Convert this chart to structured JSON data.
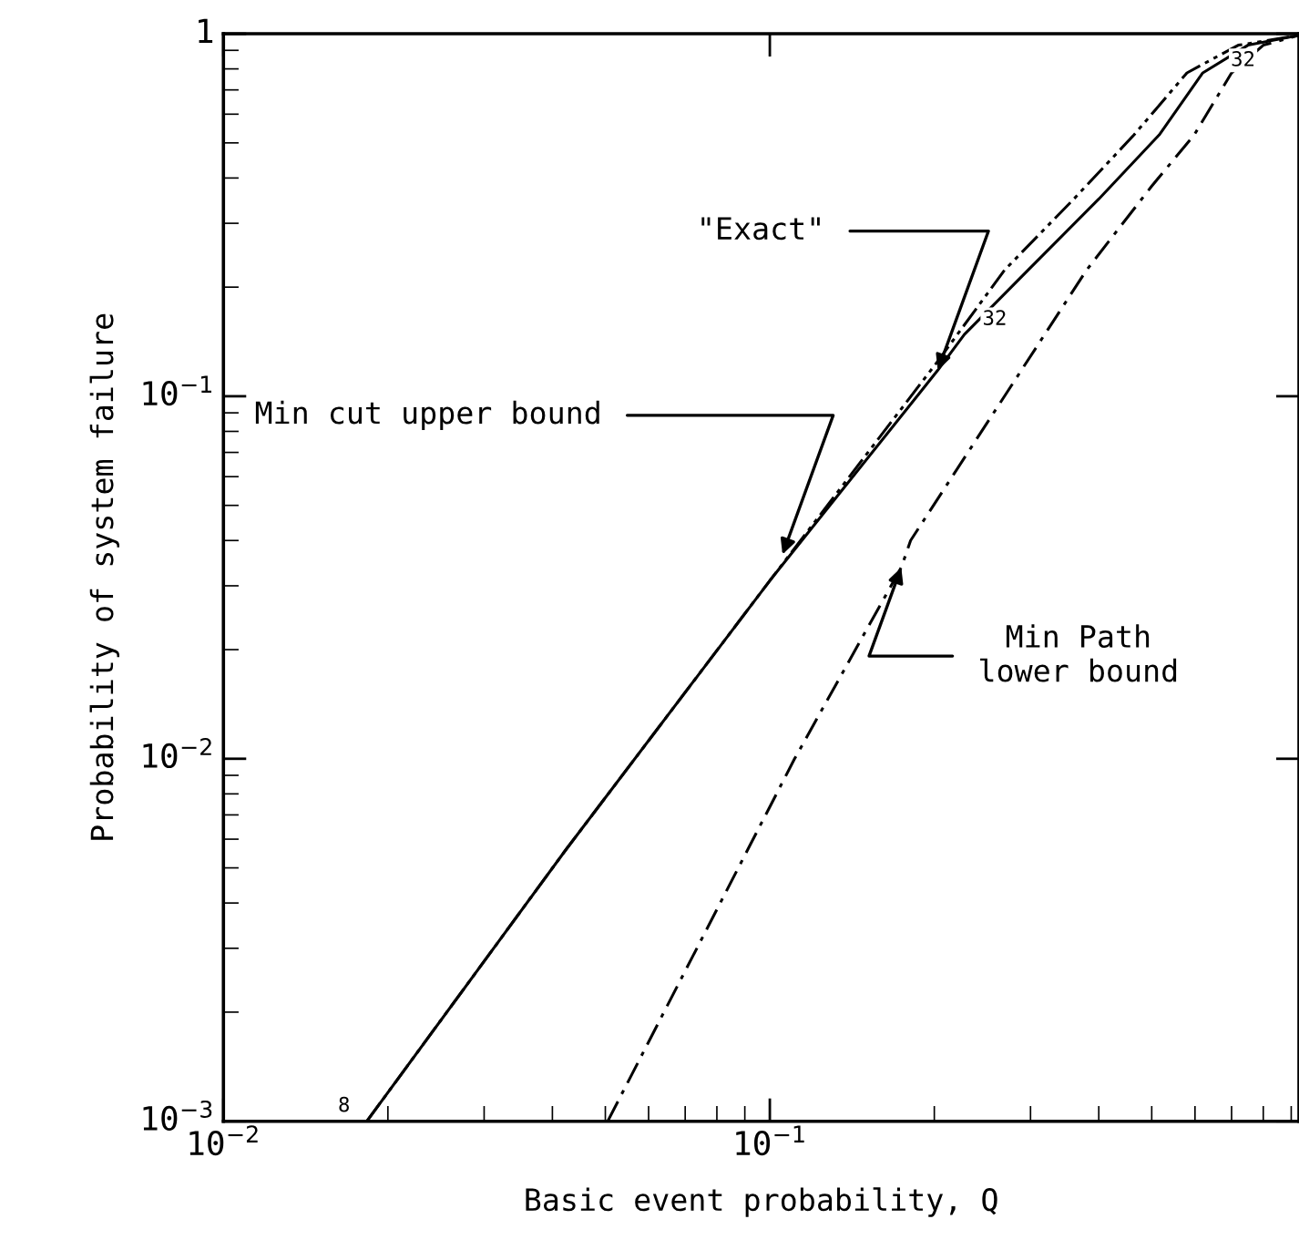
{
  "chart_data": {
    "type": "line",
    "xlabel": "Basic event probability, Q",
    "ylabel": "Probability of system failure",
    "log": "xy",
    "grid": false,
    "marker": "none",
    "xlim": [
      0.01,
      0.93
    ],
    "xticks": [
      {
        "value": 0.01,
        "label": "10$^{−2}$"
      },
      {
        "value": 0.1,
        "label": "10$^{−1}$"
      }
    ],
    "ylim": [
      0.001,
      1
    ],
    "yticks": [
      {
        "value": 0.001,
        "label": "10$^{−3}$"
      },
      {
        "value": 0.01,
        "label": "10$^{−2}$"
      },
      {
        "value": 0.1,
        "label": "10$^{−1}$"
      },
      1
    ],
    "series": [
      {
        "color": "#000000",
        "line_style": "solid",
        "x": [
          0.0183,
          0.0423,
          0.1,
          0.203,
          0.227,
          0.297,
          0.4,
          0.516,
          0.62,
          0.75,
          0.93
        ],
        "values": [
          0.001,
          0.0056,
          0.031,
          0.118,
          0.148,
          0.223,
          0.35,
          0.526,
          0.78,
          0.93,
          0.99
        ]
      },
      {
        "color": "#000000",
        "line_style": "dotted",
        "x": [
          0.0183,
          0.0423,
          0.1,
          0.203,
          0.269,
          0.36,
          0.464,
          0.58,
          0.72,
          0.93
        ],
        "values": [
          0.001,
          0.0056,
          0.031,
          0.125,
          0.223,
          0.35,
          0.526,
          0.78,
          0.93,
          0.99
        ]
      },
      {
        "color": "#000000",
        "line_style": "dashed",
        "x": [
          0.0505,
          0.111,
          0.174,
          0.181,
          0.38,
          0.5,
          0.598,
          0.7,
          0.8,
          0.93
        ],
        "values": [
          0.001,
          0.01,
          0.0337,
          0.04,
          0.223,
          0.38,
          0.526,
          0.78,
          0.93,
          0.99
        ]
      }
    ],
    "annotations": [
      {
        "text": "\"Exact\"",
        "x": 0.203,
        "y": 0.118
      },
      {
        "text": "Min cut upper bound",
        "x": 0.1055,
        "y": 0.0366
      },
      {
        "text": "Min Path\nlower bound",
        "x": 0.174,
        "y": 0.0337
      },
      {
        "text": "32",
        "x": 0.227,
        "y": 0.148
      },
      {
        "text": "32",
        "x": 0.8,
        "y": 0.96
      },
      {
        "text": "8",
        "x": 0.0183,
        "y": 0.001
      }
    ]
  }
}
